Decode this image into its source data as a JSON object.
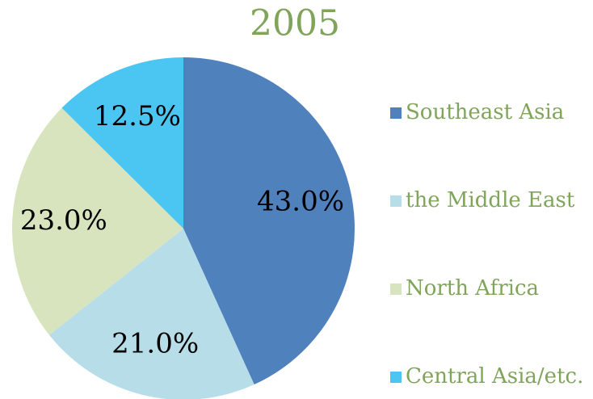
{
  "chart_data": {
    "type": "pie",
    "title": "2005",
    "categories": [
      "Southeast Asia",
      "the Middle East",
      "North Africa",
      "Central Asia/etc."
    ],
    "values": [
      43.0,
      21.0,
      23.0,
      12.5
    ],
    "value_labels": [
      "43.0%",
      "21.0%",
      "23.0%",
      "12.5%"
    ],
    "colors": [
      "#4f81bd",
      "#b7dee8",
      "#d7e4bd",
      "#4bc6f2"
    ],
    "legend": "right"
  }
}
